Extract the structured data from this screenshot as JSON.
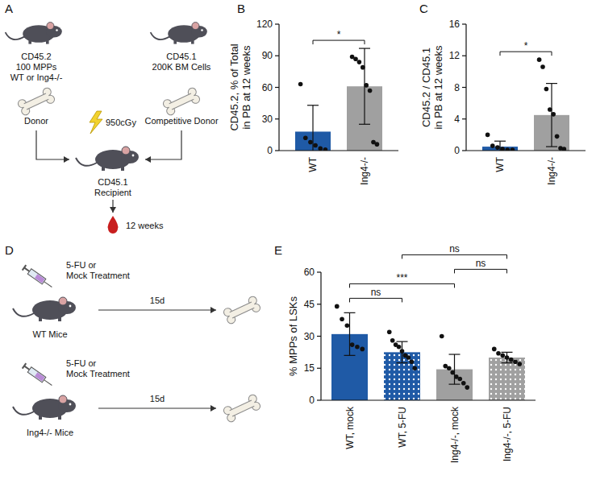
{
  "panel_letters": [
    "A",
    "B",
    "C",
    "D",
    "E"
  ],
  "diagram_a": {
    "donor": {
      "lines": [
        "CD45.2",
        "100 MPPs",
        "WT or Ing4-/-"
      ],
      "label": "Donor"
    },
    "competitor": {
      "lines": [
        "CD45.1",
        "200K BM Cells"
      ],
      "label": "Competitive Donor"
    },
    "dose": "950cGy",
    "recipient": {
      "lines": [
        "CD45.1",
        "Recipient"
      ]
    },
    "time": "12 weeks"
  },
  "diagram_d": {
    "rows": [
      {
        "treatment": [
          "5-FU or",
          "Mock Treatment"
        ],
        "label": "WT Mice",
        "time": "15d"
      },
      {
        "treatment": [
          "5-FU or",
          "Mock Treatment"
        ],
        "label": "Ing4-/- Mice",
        "time": "15d"
      }
    ]
  },
  "chart_data": [
    {
      "type": "bar",
      "ylabel": [
        "CD45.2, % of Total",
        "in PB at 12 weeks"
      ],
      "categories": [
        "WT",
        "Ing4-/-"
      ],
      "values": [
        18,
        61
      ],
      "errors": [
        25,
        36
      ],
      "points": [
        [
          63,
          12,
          8,
          5,
          2,
          1
        ],
        [
          89,
          87,
          84,
          79,
          62,
          57,
          8,
          6
        ]
      ],
      "colors": [
        "#1f5aa6",
        "#a0a0a0"
      ],
      "ylim": [
        0,
        120
      ],
      "yticks": [
        0,
        30,
        60,
        90,
        120
      ],
      "comparisons": [
        {
          "between": [
            0,
            1
          ],
          "label": "*"
        }
      ]
    },
    {
      "type": "bar",
      "ylabel": [
        "CD45.2 / CD45.1",
        "in PB at 12 weeks"
      ],
      "categories": [
        "WT",
        "Ing4-/-"
      ],
      "values": [
        0.5,
        4.5
      ],
      "errors": [
        0.7,
        4
      ],
      "points": [
        [
          2,
          0.6,
          0.4,
          0.2,
          0.1,
          0.1
        ],
        [
          11.5,
          10.6,
          7.8,
          5.2,
          4.6,
          1.8,
          0.3,
          0.2
        ]
      ],
      "colors": [
        "#1f5aa6",
        "#a0a0a0"
      ],
      "ylim": [
        0,
        16
      ],
      "yticks": [
        0,
        4,
        8,
        12,
        16
      ],
      "comparisons": [
        {
          "between": [
            0,
            1
          ],
          "label": "*"
        }
      ]
    },
    {
      "type": "bar",
      "ylabel": [
        "% MPPs of LSKs"
      ],
      "categories": [
        "WT, mock",
        "WT, 5-FU",
        "Ing4-/-, mock",
        "Ing4-/-, 5-FU"
      ],
      "values": [
        31,
        22.5,
        14.5,
        20
      ],
      "errors": [
        10,
        5,
        7,
        2.5
      ],
      "points": [
        [
          44,
          38,
          35,
          26,
          25,
          24
        ],
        [
          32,
          28,
          26,
          25,
          23,
          21,
          20,
          18,
          15
        ],
        [
          30,
          16,
          15,
          13,
          11,
          10,
          8,
          6
        ],
        [
          24,
          22,
          21,
          20,
          19,
          18,
          17
        ]
      ],
      "colors": [
        "#1f5aa6",
        "#1f5aa6",
        "#a0a0a0",
        "#a0a0a0"
      ],
      "ylim": [
        0,
        60
      ],
      "yticks": [
        0,
        15,
        30,
        45,
        60
      ],
      "comparisons": [
        {
          "between": [
            0,
            1
          ],
          "label": "ns"
        },
        {
          "between": [
            0,
            2
          ],
          "label": "***"
        },
        {
          "between": [
            2,
            3
          ],
          "label": "ns"
        },
        {
          "between": [
            1,
            3
          ],
          "label": "ns"
        }
      ]
    }
  ]
}
